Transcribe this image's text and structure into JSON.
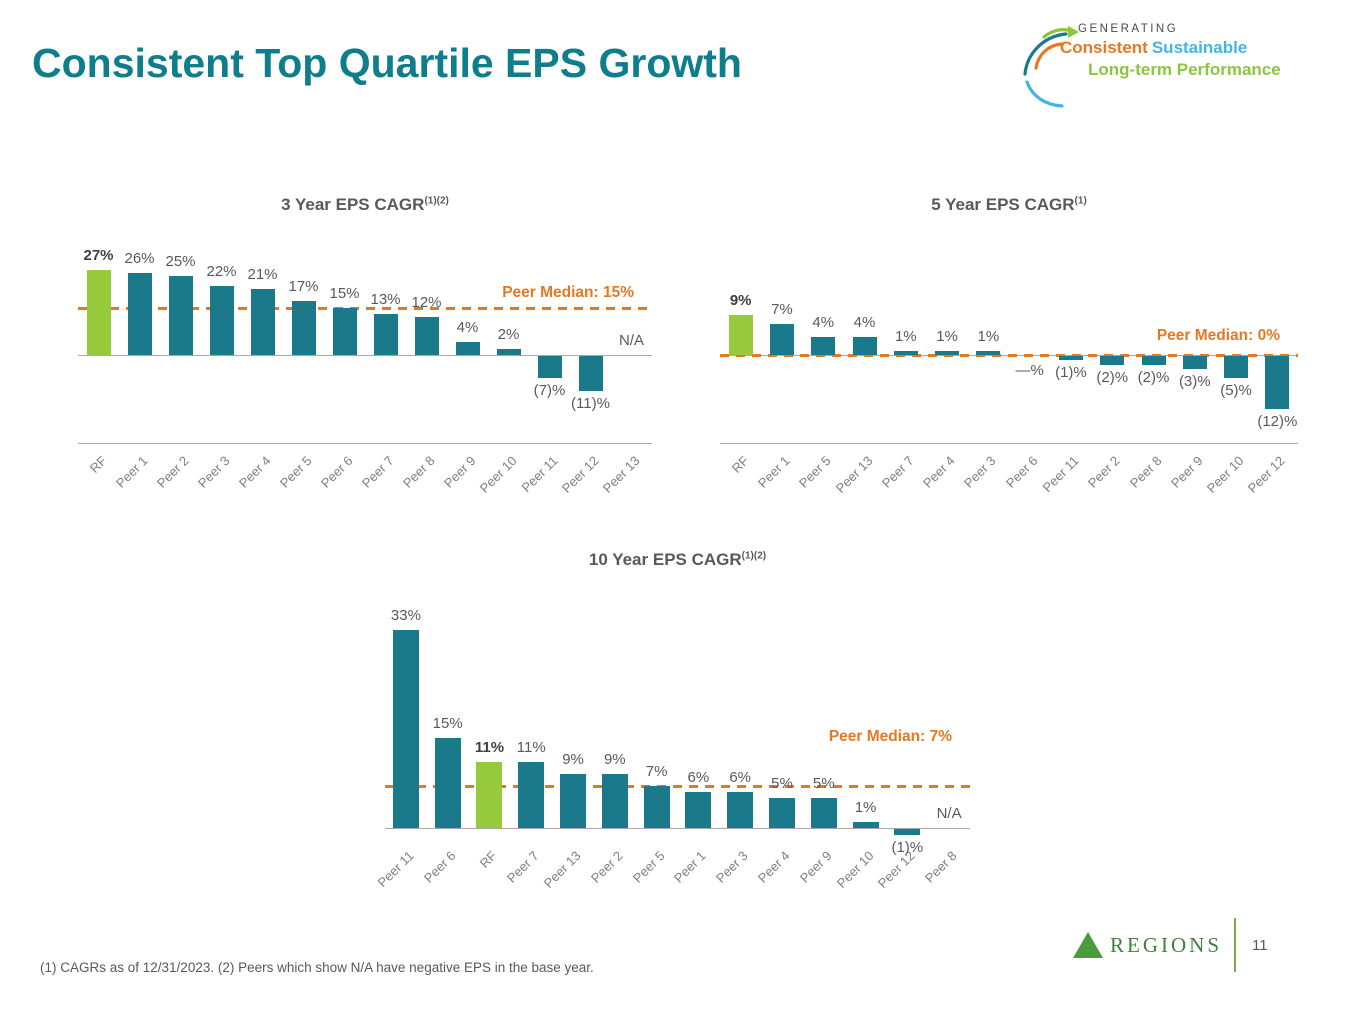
{
  "slide": {
    "title": "Consistent Top Quartile EPS Growth",
    "footnote": "(1) CAGRs as of 12/31/2023. (2) Peers which show N/A have negative EPS in the base year.",
    "page_number": "11"
  },
  "tagline": {
    "generating": "GENERATING",
    "consistent": "Consistent",
    "sustainable": "Sustainable",
    "long_term": "Long-term Performance",
    "colors": {
      "consistent": "#e87722",
      "sustainable": "#41b6e6",
      "long_term": "#8cc63f"
    }
  },
  "brand": {
    "name": "REGIONS"
  },
  "colors": {
    "title": "#0e7d8c",
    "bar": "#1a7a8c",
    "highlight_bar": "#97c93d",
    "median": "#e87722"
  },
  "chart_data": [
    {
      "type": "bar",
      "title": "3 Year EPS CAGR",
      "title_superscript": "(1)(2)",
      "categories": [
        "RF",
        "Peer 1",
        "Peer 2",
        "Peer 3",
        "Peer 4",
        "Peer 5",
        "Peer 6",
        "Peer 7",
        "Peer 8",
        "Peer 9",
        "Peer 10",
        "Peer 11",
        "Peer 12",
        "Peer 13"
      ],
      "values": [
        27,
        26,
        25,
        22,
        21,
        17,
        15,
        13,
        12,
        4,
        2,
        -7,
        -11,
        null
      ],
      "labels": [
        "27%",
        "26%",
        "25%",
        "22%",
        "21%",
        "17%",
        "15%",
        "13%",
        "12%",
        "4%",
        "2%",
        "(7)%",
        "(11)%",
        "N/A"
      ],
      "highlight_category": "RF",
      "median": {
        "label": "Peer Median: 15%",
        "value": 15
      },
      "ylim": [
        -11,
        27
      ],
      "grid": false,
      "legend": false
    },
    {
      "type": "bar",
      "title": "5 Year EPS CAGR",
      "title_superscript": "(1)",
      "categories": [
        "RF",
        "Peer 1",
        "Peer 5",
        "Peer 13",
        "Peer 7",
        "Peer 4",
        "Peer 3",
        "Peer 6",
        "Peer 11",
        "Peer 2",
        "Peer 8",
        "Peer 9",
        "Peer 10",
        "Peer 12"
      ],
      "values": [
        9,
        7,
        4,
        4,
        1,
        1,
        1,
        0,
        -1,
        -2,
        -2,
        -3,
        -5,
        -12
      ],
      "labels": [
        "9%",
        "7%",
        "4%",
        "4%",
        "1%",
        "1%",
        "1%",
        "—%",
        "(1)%",
        "(2)%",
        "(2)%",
        "(3)%",
        "(5)%",
        "(12)%"
      ],
      "highlight_category": "RF",
      "median": {
        "label": "Peer Median: 0%",
        "value": 0
      },
      "ylim": [
        -12,
        9
      ],
      "grid": false,
      "legend": false
    },
    {
      "type": "bar",
      "title": "10 Year EPS CAGR",
      "title_superscript": "(1)(2)",
      "categories": [
        "Peer 11",
        "Peer 6",
        "RF",
        "Peer 7",
        "Peer 13",
        "Peer 2",
        "Peer 5",
        "Peer 1",
        "Peer 3",
        "Peer 4",
        "Peer 9",
        "Peer 10",
        "Peer 12",
        "Peer 8"
      ],
      "values": [
        33,
        15,
        11,
        11,
        9,
        9,
        7,
        6,
        6,
        5,
        5,
        1,
        -1,
        null
      ],
      "labels": [
        "33%",
        "15%",
        "11%",
        "11%",
        "9%",
        "9%",
        "7%",
        "6%",
        "6%",
        "5%",
        "5%",
        "1%",
        "(1)%",
        "N/A"
      ],
      "highlight_category": "RF",
      "median": {
        "label": "Peer Median: 7%",
        "value": 7
      },
      "ylim": [
        -1,
        33
      ],
      "grid": false,
      "legend": false
    }
  ]
}
